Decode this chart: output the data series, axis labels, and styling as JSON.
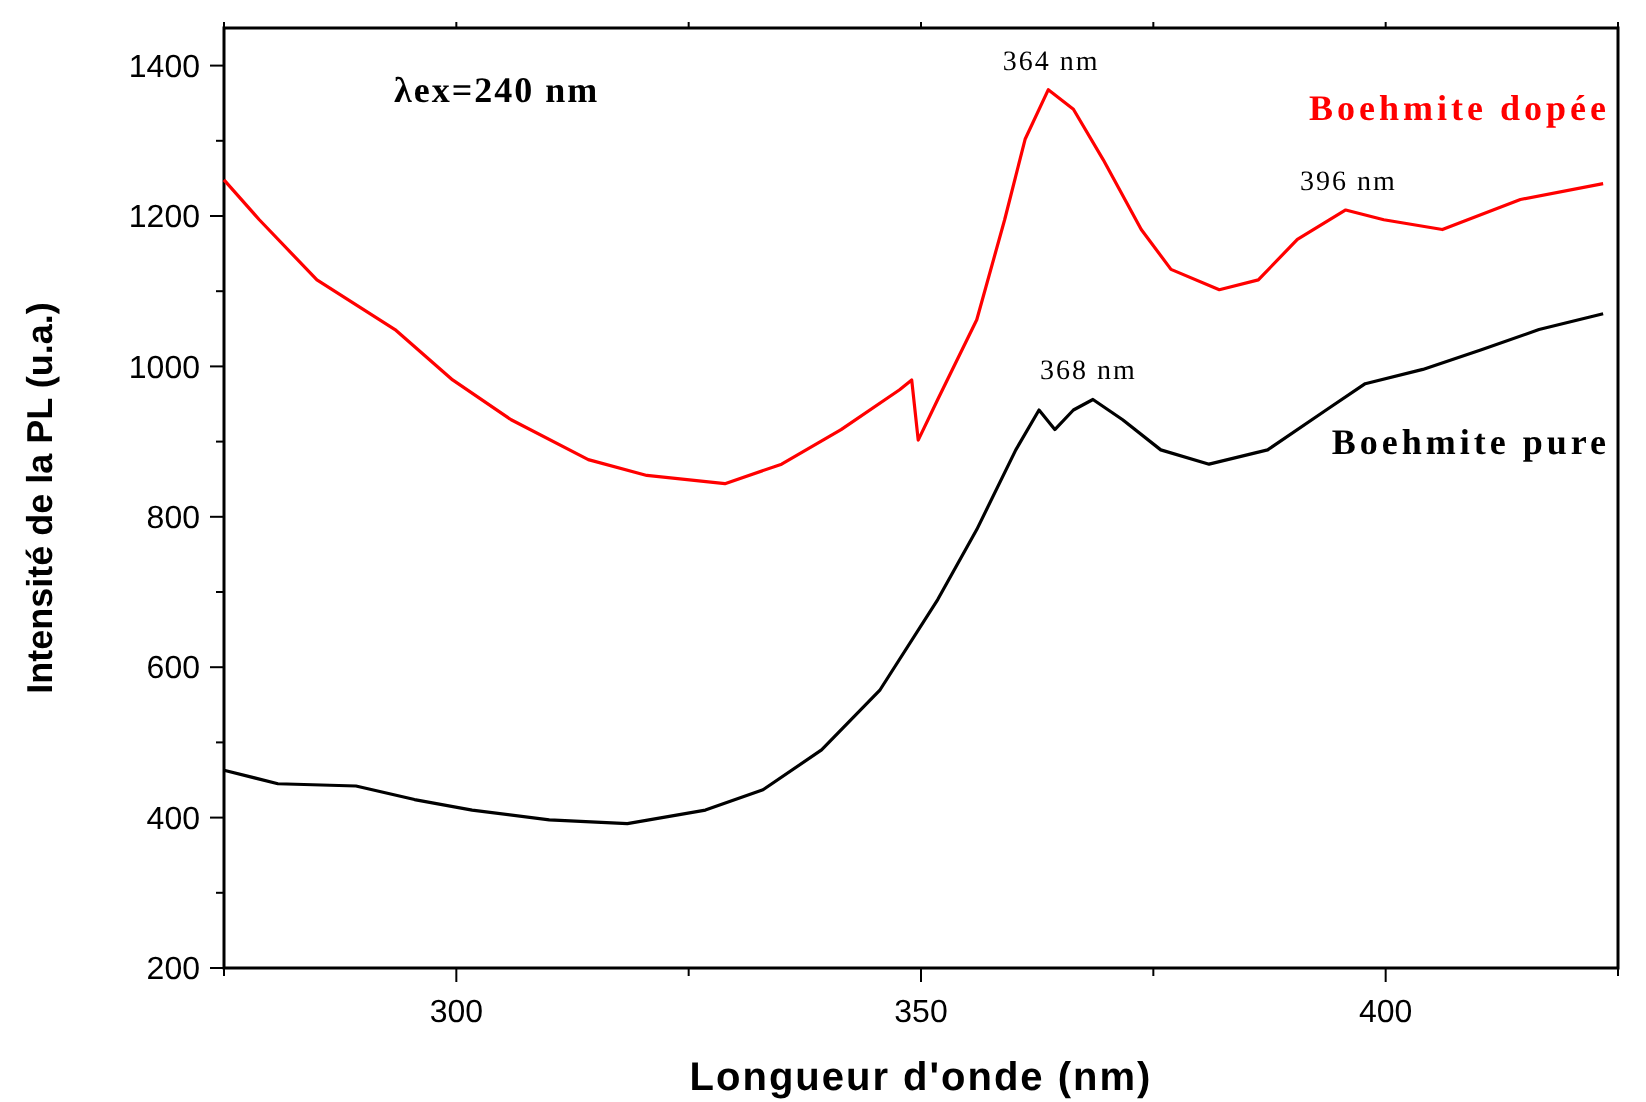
{
  "chart_data": {
    "type": "line",
    "xlabel": "Longueur d'onde (nm)",
    "ylabel": "Intensité de la PL (u.a.)",
    "xlim": [
      275,
      425
    ],
    "ylim": [
      200,
      1450
    ],
    "xticks": [
      {
        "value": 275,
        "label": null
      },
      300,
      {
        "value": 325,
        "label": null
      },
      350,
      {
        "value": 375,
        "label": null
      },
      400,
      {
        "value": 425,
        "label": null
      }
    ],
    "yticks": [
      200,
      {
        "value": 300,
        "label": null
      },
      400,
      {
        "value": 500,
        "label": null
      },
      600,
      {
        "value": 700,
        "label": null
      },
      800,
      {
        "value": 900,
        "label": null
      },
      1000,
      {
        "value": 1100,
        "label": null
      },
      1200,
      {
        "value": 1300,
        "label": null
      },
      1400
    ],
    "marker": "none",
    "line_style": "solid",
    "annotations": [
      "λex=240 nm",
      {
        "text": "364 nm",
        "x": 364,
        "y": 1368
      },
      {
        "text": "396 nm",
        "x": 396,
        "y": 1208
      },
      {
        "text": "368 nm",
        "x": 368,
        "y": 956
      }
    ],
    "series": [
      {
        "name": "Boehmite dopée",
        "color": "#ff0000",
        "x": [
          275,
          278.8,
          285,
          293.4,
          299.6,
          305.9,
          314.2,
          320.5,
          328.9,
          335,
          341.4,
          347.7,
          349,
          349.7,
          351.8,
          356,
          359,
          361.2,
          363.7,
          366.4,
          369.6,
          373.7,
          376.9,
          382.1,
          386.3,
          390.5,
          395.7,
          399.8,
          406.1,
          414.5,
          423.4
        ],
        "values": [
          1248,
          1195,
          1115,
          1049,
          982,
          929,
          876,
          855,
          844,
          870,
          916,
          969,
          982,
          902,
          956,
          1062,
          1195,
          1302,
          1368,
          1342,
          1275,
          1182,
          1129,
          1102,
          1115,
          1169,
          1208,
          1195,
          1182,
          1222,
          1243
        ]
      },
      {
        "name": "Boehmite pure",
        "color": "#000000",
        "x": [
          275,
          280.8,
          289.2,
          295.5,
          301.7,
          310,
          318.4,
          326.8,
          333,
          339.3,
          345.6,
          351.8,
          356,
          360.2,
          362.7,
          364.4,
          366.4,
          368.5,
          371.7,
          375.8,
          381,
          387.3,
          393.6,
          397.8,
          404,
          410.3,
          416.5,
          423.4
        ],
        "values": [
          463,
          445,
          442,
          424,
          410,
          397,
          392,
          410,
          437,
          490,
          570,
          690,
          783,
          889,
          942,
          916,
          942,
          956,
          929,
          889,
          870,
          889,
          942,
          977,
          996,
          1022,
          1049,
          1070
        ]
      }
    ]
  }
}
